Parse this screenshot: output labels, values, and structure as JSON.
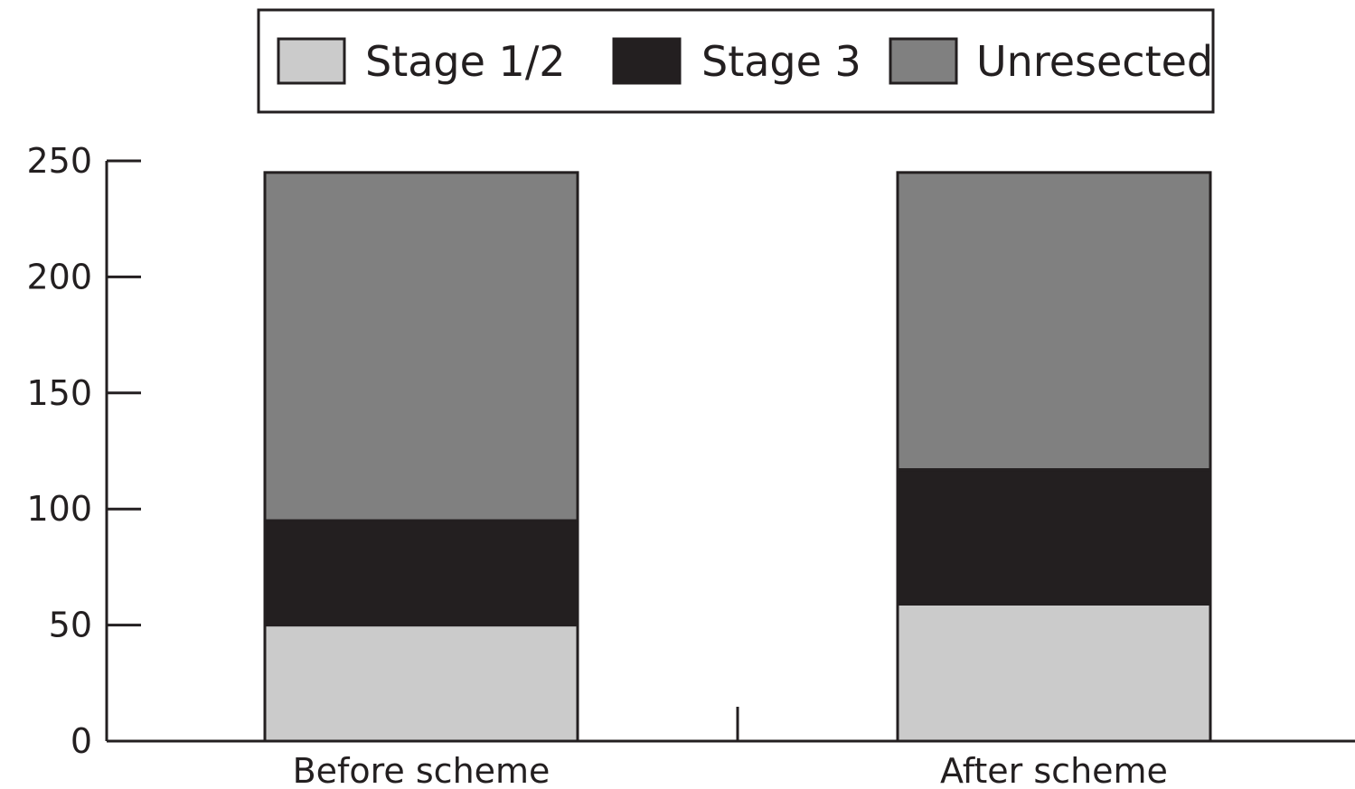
{
  "chart_data": {
    "type": "bar",
    "stacked": true,
    "categories": [
      "Before scheme",
      "After scheme"
    ],
    "series": [
      {
        "name": "Stage 1/2",
        "values": [
          50,
          59
        ],
        "color": "#cbcbcb"
      },
      {
        "name": "Stage 3",
        "values": [
          45,
          58
        ],
        "color": "#231f20"
      },
      {
        "name": "Unresected",
        "values": [
          150,
          128
        ],
        "color": "#808080"
      }
    ],
    "ylim": [
      0,
      250
    ],
    "yticks": [
      0,
      50,
      100,
      150,
      200,
      250
    ],
    "title": "",
    "xlabel": "",
    "ylabel": "",
    "legend_position": "top-center",
    "grid": false
  }
}
